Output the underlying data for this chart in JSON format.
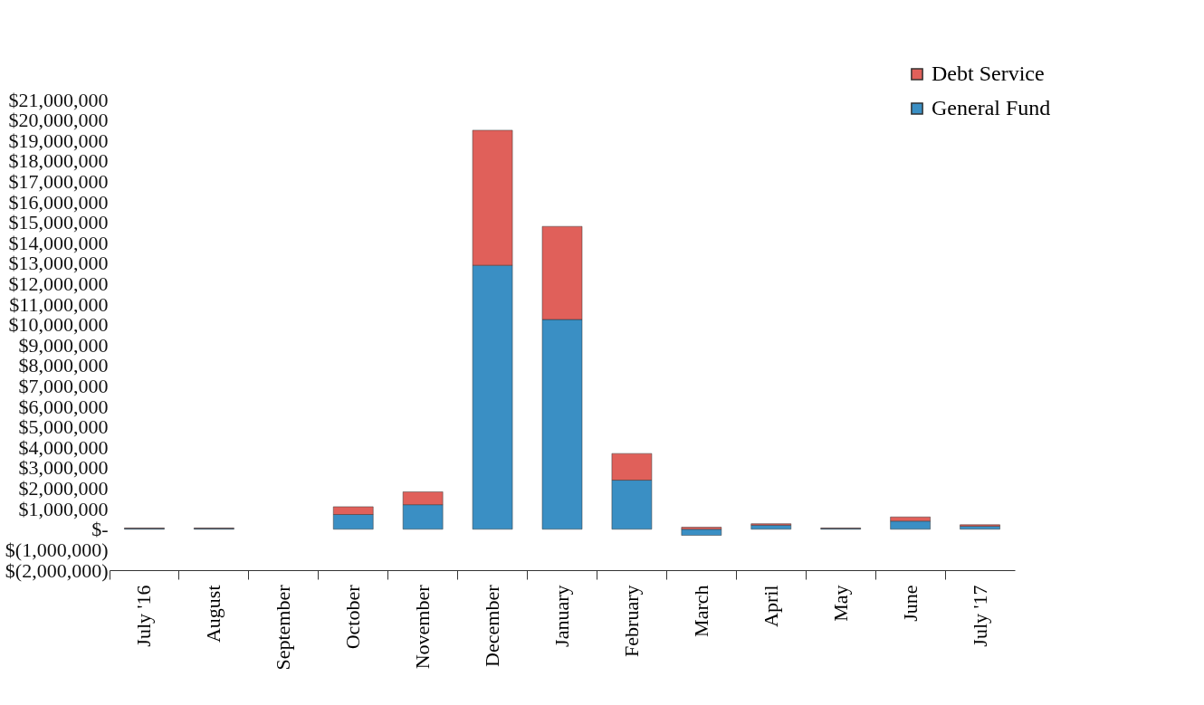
{
  "chart_data": {
    "type": "bar",
    "stacked": true,
    "legend": "top right",
    "grid": false,
    "categories": [
      "July '16",
      "August",
      "September",
      "October",
      "November",
      "December",
      "January",
      "February",
      "March",
      "April",
      "May",
      "June",
      "July '17"
    ],
    "series": [
      {
        "name": "General Fund",
        "color": "#3a8fc4",
        "values": [
          40000,
          40000,
          null,
          720000,
          1200000,
          12900000,
          10250000,
          2400000,
          -300000,
          200000,
          40000,
          400000,
          150000
        ]
      },
      {
        "name": "Debt Service",
        "color": "#e0605a",
        "values": [
          20000,
          20000,
          null,
          380000,
          630000,
          6600000,
          4550000,
          1300000,
          100000,
          70000,
          20000,
          200000,
          70000
        ]
      }
    ],
    "ylim": [
      -2000000,
      21000000
    ],
    "yticks": [
      {
        "value": -2000000,
        "label": "$(2,000,000)"
      },
      {
        "value": -1000000,
        "label": "$(1,000,000)"
      },
      {
        "value": 0,
        "label": "$-"
      },
      {
        "value": 1000000,
        "label": "$1,000,000"
      },
      {
        "value": 2000000,
        "label": "$2,000,000"
      },
      {
        "value": 3000000,
        "label": "$3,000,000"
      },
      {
        "value": 4000000,
        "label": "$4,000,000"
      },
      {
        "value": 5000000,
        "label": "$5,000,000"
      },
      {
        "value": 6000000,
        "label": "$6,000,000"
      },
      {
        "value": 7000000,
        "label": "$7,000,000"
      },
      {
        "value": 8000000,
        "label": "$8,000,000"
      },
      {
        "value": 9000000,
        "label": "$9,000,000"
      },
      {
        "value": 10000000,
        "label": "$10,000,000"
      },
      {
        "value": 11000000,
        "label": "$11,000,000"
      },
      {
        "value": 12000000,
        "label": "$12,000,000"
      },
      {
        "value": 13000000,
        "label": "$13,000,000"
      },
      {
        "value": 14000000,
        "label": "$14,000,000"
      },
      {
        "value": 15000000,
        "label": "$15,000,000"
      },
      {
        "value": 16000000,
        "label": "$16,000,000"
      },
      {
        "value": 17000000,
        "label": "$17,000,000"
      },
      {
        "value": 18000000,
        "label": "$18,000,000"
      },
      {
        "value": 19000000,
        "label": "$19,000,000"
      },
      {
        "value": 20000000,
        "label": "$20,000,000"
      },
      {
        "value": 21000000,
        "label": "$21,000,000"
      }
    ]
  }
}
